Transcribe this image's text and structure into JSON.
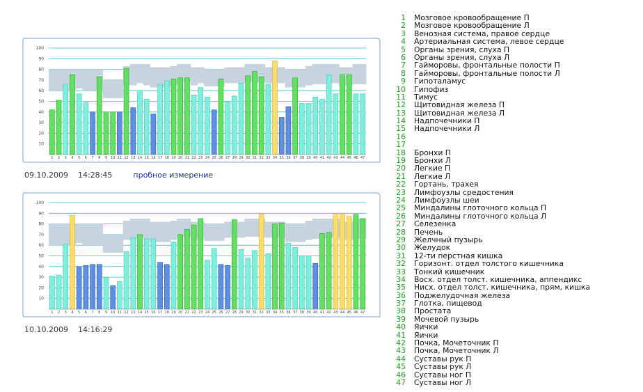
{
  "colors": {
    "cyan_fill": "#7feedd",
    "cyan_stroke": "#3cc9b4",
    "green_fill": "#63e063",
    "green_stroke": "#23a823",
    "blue_fill": "#5f8fe0",
    "blue_stroke": "#2b55b8",
    "yellow_fill": "#f7dd6e",
    "yellow_stroke": "#d9b22a",
    "norm_band": "#c8d3e0",
    "grid_line": "#3cbdc8",
    "frame": "#7aa3c8"
  },
  "measurements": [
    {
      "date": "09.10.2009",
      "time": "14:28:45",
      "note": "пробное измерение"
    },
    {
      "date": "10.10.2009",
      "time": "14:16:29",
      "note": ""
    }
  ],
  "chart_data": [
    {
      "type": "bar",
      "ylim": [
        0,
        100
      ],
      "yticks": [
        10,
        20,
        30,
        40,
        50,
        60,
        70,
        80,
        90,
        100
      ],
      "categories": [
        "1",
        "2",
        "3",
        "4",
        "5",
        "6",
        "7",
        "8",
        "9",
        "10",
        "11",
        "12",
        "13",
        "14",
        "15",
        "16",
        "17",
        "18",
        "19",
        "20",
        "21",
        "22",
        "23",
        "24",
        "25",
        "26",
        "27",
        "28",
        "29",
        "30",
        "31",
        "32",
        "33",
        "34",
        "35",
        "36",
        "37",
        "38",
        "39",
        "40",
        "41",
        "42",
        "43",
        "44",
        "45",
        "46",
        "47"
      ],
      "values": [
        42,
        51,
        66,
        75,
        57,
        49,
        40,
        73,
        40,
        40,
        40,
        81,
        44,
        60,
        52,
        38,
        66,
        69,
        71,
        72,
        72,
        56,
        63,
        54,
        42,
        71,
        50,
        55,
        67,
        74,
        78,
        73,
        66,
        88,
        35,
        45,
        72,
        48,
        48,
        54,
        52,
        75,
        57,
        75,
        75,
        57,
        57
      ],
      "bar_colors": [
        "green",
        "green",
        "cyan",
        "green",
        "cyan",
        "cyan",
        "blue",
        "green",
        "green",
        "green",
        "blue",
        "green",
        "blue",
        "cyan",
        "cyan",
        "blue",
        "cyan",
        "cyan",
        "green",
        "green",
        "green",
        "cyan",
        "cyan",
        "cyan",
        "blue",
        "green",
        "cyan",
        "cyan",
        "cyan",
        "green",
        "green",
        "green",
        "cyan",
        "yellow",
        "blue",
        "blue",
        "green",
        "cyan",
        "cyan",
        "cyan",
        "cyan",
        "cyan",
        "cyan",
        "green",
        "green",
        "cyan",
        "cyan"
      ],
      "norm_band": [
        [
          60,
          80
        ],
        [
          60,
          80
        ],
        [
          60,
          80
        ],
        [
          60,
          80
        ],
        [
          62,
          80
        ],
        [
          60,
          80
        ],
        [
          60,
          80
        ],
        [
          60,
          80
        ],
        [
          53,
          70
        ],
        [
          53,
          70
        ],
        [
          53,
          70
        ],
        [
          65,
          83
        ],
        [
          65,
          85
        ],
        [
          67,
          85
        ],
        [
          65,
          85
        ],
        [
          63,
          82
        ],
        [
          63,
          82
        ],
        [
          63,
          82
        ],
        [
          65,
          83
        ],
        [
          68,
          85
        ],
        [
          68,
          85
        ],
        [
          65,
          82
        ],
        [
          67,
          82
        ],
        [
          64,
          80
        ],
        [
          64,
          80
        ],
        [
          64,
          80
        ],
        [
          67,
          82
        ],
        [
          67,
          82
        ],
        [
          67,
          82
        ],
        [
          68,
          85
        ],
        [
          68,
          85
        ],
        [
          68,
          85
        ],
        [
          67,
          82
        ],
        [
          67,
          82
        ],
        [
          67,
          82
        ],
        [
          63,
          80
        ],
        [
          63,
          80
        ],
        [
          63,
          80
        ],
        [
          65,
          83
        ],
        [
          66,
          85
        ],
        [
          66,
          85
        ],
        [
          67,
          85
        ],
        [
          67,
          85
        ],
        [
          65,
          82
        ],
        [
          65,
          82
        ],
        [
          66,
          85
        ],
        [
          66,
          85
        ]
      ]
    },
    {
      "type": "bar",
      "ylim": [
        0,
        100
      ],
      "yticks": [
        10,
        20,
        30,
        40,
        50,
        60,
        70,
        80,
        90,
        100
      ],
      "categories": [
        "1",
        "2",
        "3",
        "4",
        "5",
        "6",
        "7",
        "8",
        "9",
        "10",
        "11",
        "12",
        "13",
        "14",
        "15",
        "16",
        "17",
        "18",
        "19",
        "20",
        "21",
        "22",
        "23",
        "24",
        "25",
        "26",
        "27",
        "28",
        "29",
        "30",
        "31",
        "32",
        "33",
        "34",
        "35",
        "36",
        "37",
        "38",
        "39",
        "40",
        "41",
        "42",
        "43",
        "44",
        "45",
        "46",
        "47"
      ],
      "values": [
        31,
        32,
        61,
        88,
        40,
        41,
        42,
        42,
        30,
        22,
        26,
        54,
        67,
        70,
        66,
        66,
        44,
        42,
        63,
        70,
        75,
        79,
        85,
        46,
        57,
        42,
        41,
        84,
        56,
        48,
        55,
        89,
        52,
        80,
        81,
        62,
        58,
        50,
        50,
        43,
        71,
        72,
        89,
        89,
        87,
        89,
        85
      ],
      "bar_colors": [
        "cyan",
        "cyan",
        "cyan",
        "yellow",
        "blue",
        "blue",
        "blue",
        "blue",
        "cyan",
        "blue",
        "cyan",
        "cyan",
        "cyan",
        "green",
        "cyan",
        "cyan",
        "blue",
        "blue",
        "cyan",
        "green",
        "green",
        "green",
        "green",
        "cyan",
        "cyan",
        "blue",
        "blue",
        "green",
        "cyan",
        "cyan",
        "cyan",
        "yellow",
        "cyan",
        "green",
        "green",
        "cyan",
        "cyan",
        "cyan",
        "cyan",
        "blue",
        "green",
        "green",
        "yellow",
        "yellow",
        "yellow",
        "green",
        "green"
      ],
      "norm_band": [
        [
          60,
          80
        ],
        [
          60,
          80
        ],
        [
          60,
          80
        ],
        [
          60,
          80
        ],
        [
          62,
          80
        ],
        [
          60,
          80
        ],
        [
          60,
          80
        ],
        [
          60,
          80
        ],
        [
          53,
          70
        ],
        [
          53,
          70
        ],
        [
          53,
          70
        ],
        [
          65,
          83
        ],
        [
          65,
          85
        ],
        [
          67,
          85
        ],
        [
          65,
          85
        ],
        [
          63,
          82
        ],
        [
          63,
          82
        ],
        [
          63,
          82
        ],
        [
          65,
          83
        ],
        [
          68,
          85
        ],
        [
          68,
          85
        ],
        [
          65,
          82
        ],
        [
          67,
          82
        ],
        [
          64,
          80
        ],
        [
          64,
          80
        ],
        [
          64,
          80
        ],
        [
          67,
          82
        ],
        [
          67,
          82
        ],
        [
          67,
          82
        ],
        [
          68,
          85
        ],
        [
          68,
          85
        ],
        [
          68,
          85
        ],
        [
          67,
          82
        ],
        [
          67,
          82
        ],
        [
          67,
          82
        ],
        [
          63,
          80
        ],
        [
          63,
          80
        ],
        [
          63,
          80
        ],
        [
          65,
          83
        ],
        [
          66,
          85
        ],
        [
          66,
          85
        ],
        [
          67,
          85
        ],
        [
          67,
          85
        ],
        [
          65,
          82
        ],
        [
          65,
          82
        ],
        [
          66,
          85
        ],
        [
          66,
          85
        ]
      ]
    }
  ],
  "legend": [
    {
      "num": "1",
      "label": "Мозговое кровообращение П"
    },
    {
      "num": "2",
      "label": "Мозговое кровообращение Л"
    },
    {
      "num": "3",
      "label": "Венозная система, правое сердце"
    },
    {
      "num": "4",
      "label": "Артериальная система, левое сердце"
    },
    {
      "num": "5",
      "label": "Органы зрения, слуха П"
    },
    {
      "num": "6",
      "label": "Органы зрения, слуха Л"
    },
    {
      "num": "7",
      "label": "Гайморовы, фронтальные полости П"
    },
    {
      "num": "8",
      "label": "Гайморовы, фронтальные полости Л"
    },
    {
      "num": "9",
      "label": "Гипоталамус"
    },
    {
      "num": "10",
      "label": "Гипофиз"
    },
    {
      "num": "11",
      "label": "Тимус"
    },
    {
      "num": "12",
      "label": "Щитовидная железа П"
    },
    {
      "num": "13",
      "label": "Щитовидная железа Л"
    },
    {
      "num": "14",
      "label": "Надпочечники П"
    },
    {
      "num": "15",
      "label": "Надпочечники Л"
    },
    {
      "num": "16",
      "label": ""
    },
    {
      "num": "17",
      "label": ""
    },
    {
      "num": "18",
      "label": "Бронхи П"
    },
    {
      "num": "19",
      "label": "Бронхи Л"
    },
    {
      "num": "20",
      "label": "Легкие П"
    },
    {
      "num": "21",
      "label": "Легкие Л"
    },
    {
      "num": "22",
      "label": "Гортань, трахея"
    },
    {
      "num": "23",
      "label": "Лимфоузлы средостения"
    },
    {
      "num": "24",
      "label": "Лимфоузлы шеи"
    },
    {
      "num": "25",
      "label": "Миндалины глоточного кольца П"
    },
    {
      "num": "26",
      "label": "Миндалины глоточного кольца Л"
    },
    {
      "num": "27",
      "label": "Селезенка"
    },
    {
      "num": "28",
      "label": "Печень"
    },
    {
      "num": "29",
      "label": "Желчный пузырь"
    },
    {
      "num": "30",
      "label": "Желудок"
    },
    {
      "num": "31",
      "label": "12-ти перстная кишка"
    },
    {
      "num": "32",
      "label": "Горизонт. отдел толстого кишечника"
    },
    {
      "num": "33",
      "label": "Тонкий кишечник"
    },
    {
      "num": "34",
      "label": "Восх. отдел толст. кишечника, аппендикс"
    },
    {
      "num": "35",
      "label": "Нисх. отдел толст. кишечника, прям, кишка"
    },
    {
      "num": "36",
      "label": "Поджелудочная железа"
    },
    {
      "num": "37",
      "label": "Глотка, пищевод"
    },
    {
      "num": "38",
      "label": "Простата"
    },
    {
      "num": "39",
      "label": "Мочевой пузырь"
    },
    {
      "num": "40",
      "label": "Яички"
    },
    {
      "num": "41",
      "label": "Яички"
    },
    {
      "num": "42",
      "label": "Почка, Мочеточник П"
    },
    {
      "num": "43",
      "label": "Почка, Мочеточник Л"
    },
    {
      "num": "44",
      "label": "Суставы рук П"
    },
    {
      "num": "45",
      "label": "Суставы рук Л"
    },
    {
      "num": "46",
      "label": "Суставы ног П"
    },
    {
      "num": "47",
      "label": "Суставы ног Л"
    }
  ]
}
